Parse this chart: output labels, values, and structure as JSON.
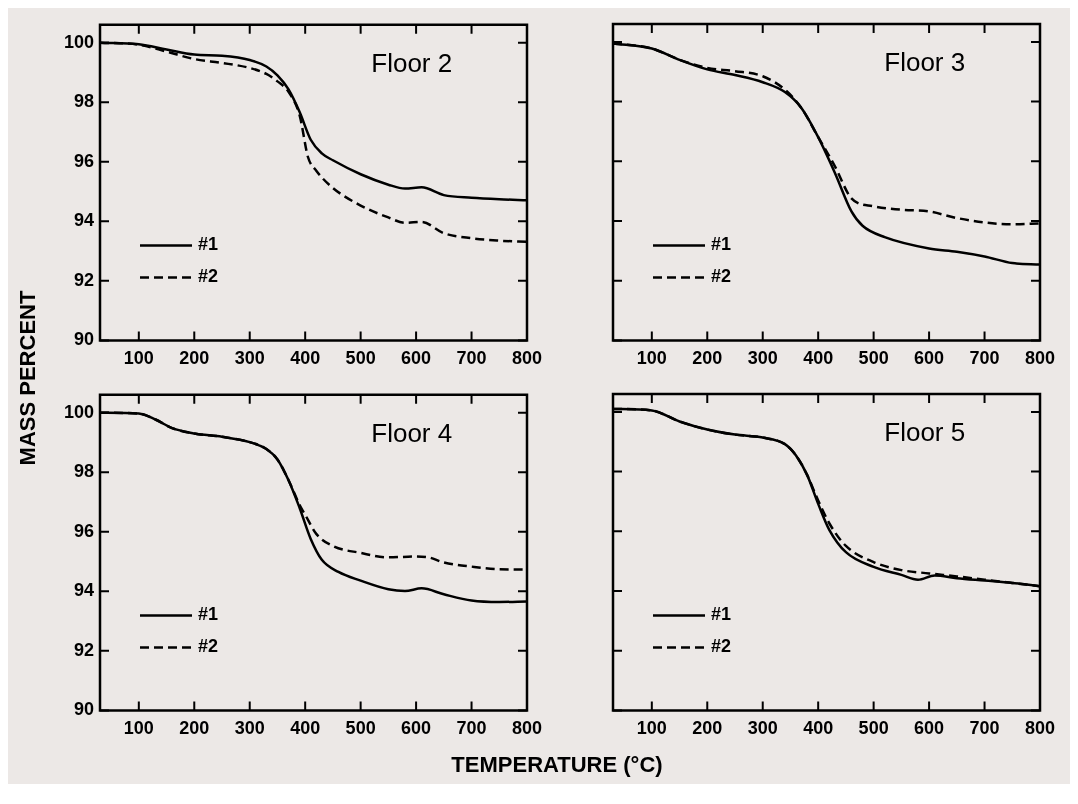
{
  "chart_data": [
    {
      "type": "line",
      "title": "Floor 2",
      "ylabel": "MASS PERCENT",
      "xlim": [
        30,
        800
      ],
      "xticks": [
        100,
        200,
        300,
        400,
        500,
        600,
        700,
        800
      ],
      "ylim": [
        90,
        100.6
      ],
      "yticks": [
        90,
        92,
        94,
        96,
        98,
        100
      ],
      "legend": "bottom left",
      "grid": false,
      "marker": "none",
      "series": [
        {
          "name": "#1",
          "color": "#000000",
          "line_style": "solid",
          "x": [
            30,
            100,
            150,
            200,
            250,
            300,
            330,
            350,
            370,
            390,
            410,
            430,
            450,
            500,
            550,
            580,
            610,
            650,
            700,
            750,
            800
          ],
          "values": [
            100,
            99.95,
            99.77,
            99.6,
            99.56,
            99.42,
            99.2,
            98.9,
            98.43,
            97.67,
            96.74,
            96.28,
            96.05,
            95.58,
            95.23,
            95.1,
            95.14,
            94.88,
            94.79,
            94.74,
            94.71
          ]
        },
        {
          "name": "#2",
          "color": "#000000",
          "line_style": "dashed",
          "x": [
            30,
            100,
            150,
            200,
            250,
            300,
            330,
            350,
            370,
            390,
            405,
            420,
            450,
            500,
            550,
            580,
            610,
            650,
            700,
            750,
            800
          ],
          "values": [
            100,
            99.93,
            99.7,
            99.45,
            99.32,
            99.15,
            98.95,
            98.7,
            98.35,
            97.56,
            96.16,
            95.7,
            95.12,
            94.53,
            94.13,
            93.95,
            93.98,
            93.6,
            93.43,
            93.35,
            93.31
          ]
        }
      ]
    },
    {
      "type": "line",
      "title": "Floor 3",
      "xlim": [
        30,
        800
      ],
      "xticks": [
        100,
        200,
        300,
        400,
        500,
        600,
        700,
        800
      ],
      "ylim": [
        90,
        100.6
      ],
      "yticks": [
        90,
        92,
        94,
        96,
        98,
        100
      ],
      "tick_labels": "x",
      "legend": "bottom left",
      "grid": false,
      "marker": "none",
      "series": [
        {
          "name": "#1",
          "color": "#000000",
          "line_style": "solid",
          "x": [
            30,
            100,
            150,
            200,
            250,
            300,
            340,
            370,
            400,
            430,
            460,
            480,
            520,
            600,
            650,
            700,
            750,
            800
          ],
          "values": [
            99.95,
            99.78,
            99.4,
            99.08,
            98.89,
            98.65,
            98.32,
            97.78,
            96.81,
            95.62,
            94.32,
            93.84,
            93.46,
            93.08,
            92.97,
            92.81,
            92.59,
            92.54
          ]
        },
        {
          "name": "#2",
          "color": "#000000",
          "line_style": "dashed",
          "x": [
            30,
            100,
            150,
            200,
            250,
            300,
            340,
            370,
            400,
            430,
            460,
            500,
            550,
            600,
            650,
            700,
            750,
            800
          ],
          "values": [
            99.95,
            99.78,
            99.4,
            99.13,
            99.02,
            98.85,
            98.4,
            97.78,
            96.81,
            95.84,
            94.76,
            94.49,
            94.38,
            94.32,
            94.1,
            93.95,
            93.89,
            93.92
          ]
        }
      ]
    },
    {
      "type": "line",
      "title": "Floor 4",
      "xlabel": "TEMPERATURE (°C)",
      "xlim": [
        30,
        800
      ],
      "xticks": [
        100,
        200,
        300,
        400,
        500,
        600,
        700,
        800
      ],
      "ylim": [
        90,
        100.6
      ],
      "yticks": [
        90,
        92,
        94,
        96,
        98,
        100
      ],
      "legend": "bottom left",
      "grid": false,
      "marker": "none",
      "series": [
        {
          "name": "#1",
          "color": "#000000",
          "line_style": "solid",
          "x": [
            30,
            100,
            130,
            160,
            200,
            250,
            300,
            330,
            350,
            370,
            390,
            410,
            430,
            460,
            500,
            550,
            580,
            610,
            650,
            700,
            750,
            800
          ],
          "values": [
            100,
            99.97,
            99.77,
            99.48,
            99.3,
            99.19,
            99.01,
            98.78,
            98.43,
            97.73,
            96.8,
            95.76,
            95.06,
            94.65,
            94.36,
            94.07,
            94.01,
            94.1,
            93.9,
            93.69,
            93.64,
            93.66
          ]
        },
        {
          "name": "#2",
          "color": "#000000",
          "line_style": "dashed",
          "x": [
            30,
            100,
            130,
            160,
            200,
            250,
            300,
            330,
            350,
            370,
            390,
            400,
            420,
            450,
            500,
            550,
            600,
            620,
            650,
            700,
            750,
            800
          ],
          "values": [
            100,
            99.97,
            99.77,
            99.48,
            99.3,
            99.19,
            99.01,
            98.78,
            98.43,
            97.73,
            96.9,
            96.57,
            95.93,
            95.52,
            95.29,
            95.14,
            95.17,
            95.15,
            94.97,
            94.83,
            94.74,
            94.73
          ]
        }
      ]
    },
    {
      "type": "line",
      "title": "Floor 5",
      "xlim": [
        30,
        800
      ],
      "xticks": [
        100,
        200,
        300,
        400,
        500,
        600,
        700,
        800
      ],
      "ylim": [
        90,
        100.6
      ],
      "yticks": [
        90,
        92,
        94,
        96,
        98,
        100
      ],
      "tick_labels": "x",
      "legend": "bottom left",
      "grid": false,
      "marker": "none",
      "series": [
        {
          "name": "#1",
          "color": "#000000",
          "line_style": "solid",
          "x": [
            30,
            100,
            150,
            200,
            250,
            300,
            340,
            360,
            380,
            400,
            420,
            450,
            500,
            550,
            580,
            610,
            650,
            700,
            750,
            800
          ],
          "values": [
            100.1,
            100.05,
            99.68,
            99.41,
            99.24,
            99.14,
            98.92,
            98.54,
            97.89,
            96.92,
            96.05,
            95.3,
            94.81,
            94.54,
            94.38,
            94.52,
            94.43,
            94.35,
            94.27,
            94.16
          ]
        },
        {
          "name": "#2",
          "color": "#000000",
          "line_style": "dashed",
          "x": [
            30,
            100,
            150,
            200,
            250,
            300,
            340,
            360,
            380,
            400,
            420,
            450,
            500,
            550,
            600,
            650,
            700,
            750,
            800
          ],
          "values": [
            100.1,
            100.05,
            99.68,
            99.41,
            99.24,
            99.14,
            98.92,
            98.54,
            97.89,
            97.03,
            96.27,
            95.51,
            94.97,
            94.7,
            94.59,
            94.49,
            94.38,
            94.27,
            94.16
          ]
        }
      ]
    }
  ]
}
